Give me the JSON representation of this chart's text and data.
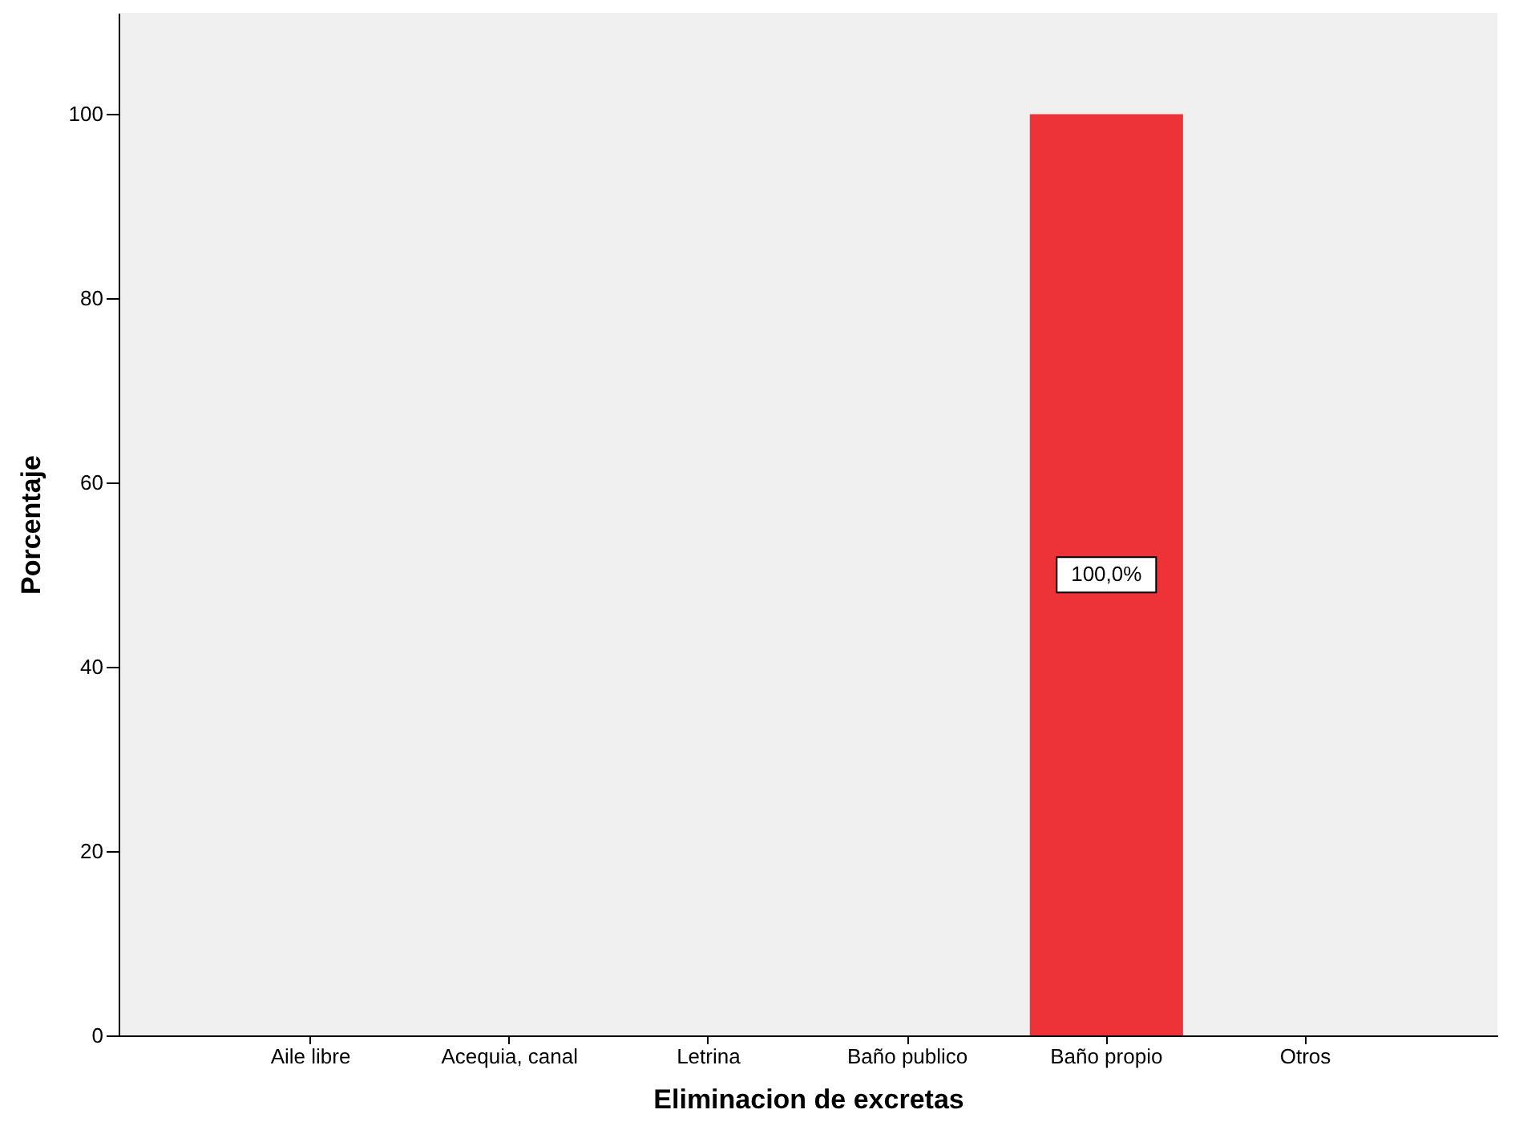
{
  "chart_data": {
    "type": "bar",
    "xlabel": "Eliminacion de excretas",
    "ylabel": "Porcentaje",
    "categories": [
      "Aile libre",
      "Acequia, canal",
      "Letrina",
      "Baño publico",
      "Baño propio",
      "Otros"
    ],
    "values": [
      0,
      0,
      0,
      0,
      100,
      0
    ],
    "value_labels": [
      null,
      null,
      null,
      null,
      "100,0%",
      null
    ],
    "color": "#ee3338",
    "ylim": [
      0,
      111
    ],
    "yticks": [
      0,
      20,
      40,
      60,
      80,
      100
    ],
    "grid": false
  }
}
